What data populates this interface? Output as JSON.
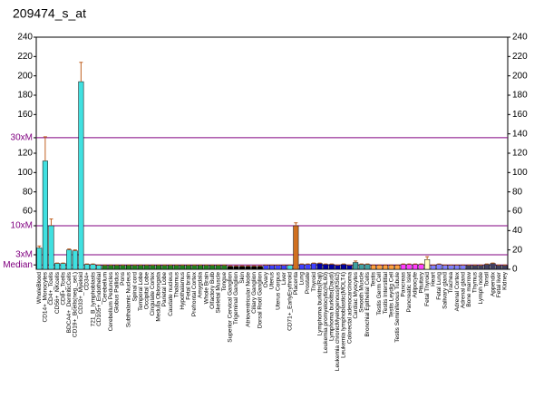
{
  "chart_data": {
    "type": "bar",
    "title": "209474_s_at",
    "categories": [
      "WholeBlood",
      "CD14+_Monocytes",
      "CD4+_Tcells",
      "CD56+_NKcells",
      "CD8+_Tcells",
      "BDCA4+_DentriticCells",
      "CD19+_Bcells(neg._sel.)",
      "CD33+_Myeloid",
      "CD34+",
      "721_B_lymphoblasts",
      "CD105+_Endothelial",
      "Cerebellum",
      "Cerebellum Peduncles",
      "Globus Pallidus",
      "Pons",
      "Subthalamic Nucleus",
      "Spinal cord",
      "Temporal Lobe",
      "Occipital Lobe",
      "Cingulate Cortex",
      "Medulla Oblongata",
      "Parietal Lobe",
      "Caudate nucleus",
      "Thalamus",
      "Hypothalamus",
      "Fetal brain",
      "Prefrontal Cortex",
      "Amygdala",
      "Whole Brain",
      "Olfactory Bulb",
      "Skeletal Muscle",
      "Tongue",
      "Superior Cervical Ganglion",
      "Trigeminal Ganglion",
      "Skin",
      "Atrioventricular Node",
      "Ciliary Ganglion",
      "Dorsal Root Ganglion",
      "Ovary",
      "Uterus",
      "Uterus Corpus",
      "Liver",
      "CD71+_EarlyErythroid",
      "Placenta",
      "Lung",
      "Prostate",
      "Thyroid",
      "Lymphoma burkitts(Raji)",
      "Leukemia promyelocytic(HL60)",
      "Lymphoma burkitts(Daudi)",
      "Leukemia chronicMyelogenous(K562)",
      "Leukemia lymphoblastic(MOLT4)",
      "Colorectal adenocarcinoma",
      "Cardiac Myocytes",
      "Smooth Muscle",
      "Bronchial Epithelial Cells",
      "Testis",
      "Testis Germ Cell",
      "Testis Interstitial",
      "Testis Leydig Cell",
      "Testis Seminiferous Tubule",
      "Pancreas",
      "Pancreatic Islet",
      "Adipocyte",
      "Pituitary",
      "Fetal Thyroid",
      "Heart",
      "Fetal Lung",
      "Salivary gland",
      "Trachea",
      "Adrenal Cortex",
      "Adrenal gland",
      "Bone marrow",
      "Thymus",
      "Lymph node",
      "Tonsil",
      "Appendix",
      "Fetal liver",
      "Kidney"
    ],
    "values": [
      22,
      112,
      45,
      6,
      6,
      20,
      19,
      194,
      5,
      5,
      4,
      4,
      4,
      4,
      4,
      4,
      4,
      4,
      4,
      4,
      4,
      4,
      4,
      4,
      4,
      4,
      4,
      4,
      4,
      4,
      4,
      4,
      3,
      3,
      3,
      3,
      3,
      3,
      4,
      4,
      4,
      4,
      4,
      45,
      5,
      5,
      6,
      6,
      5,
      5,
      4,
      5,
      4,
      7,
      5,
      5,
      4,
      4,
      4,
      4,
      4,
      5,
      5,
      5,
      5,
      10,
      4,
      5,
      4,
      4,
      4,
      4,
      4,
      4,
      4,
      5,
      6,
      4,
      4
    ],
    "errors": [
      2,
      25,
      7,
      0.5,
      0.5,
      1,
      1,
      20,
      0.5,
      0.5,
      0.5,
      0.5,
      0.5,
      0.5,
      0.5,
      0.5,
      0.5,
      0.5,
      0.5,
      0.5,
      0.5,
      0.5,
      0.5,
      0.5,
      0.5,
      0.5,
      0.5,
      0.5,
      0.5,
      0.5,
      0.5,
      0.5,
      0.5,
      0.5,
      0.5,
      0.5,
      0.5,
      0.5,
      0.5,
      0.5,
      0.5,
      0.5,
      0.5,
      3,
      0.5,
      0.5,
      0.5,
      0.5,
      0.5,
      0.5,
      0.5,
      0.5,
      0.5,
      1.5,
      0.5,
      0.5,
      0.5,
      0.5,
      0.5,
      0.5,
      0.5,
      0.5,
      0.5,
      0.5,
      0.5,
      3,
      0.5,
      0.5,
      0.5,
      0.5,
      0.5,
      0.5,
      0.5,
      0.5,
      0.5,
      0.5,
      0.5,
      0.5,
      0.5
    ],
    "colors": [
      "#40e0e0",
      "#40e0e0",
      "#40e0e0",
      "#40e0e0",
      "#40e0e0",
      "#40e0e0",
      "#40e0e0",
      "#40e0e0",
      "#40e0e0",
      "#40e0e0",
      "#40e0e0",
      "#208020",
      "#208020",
      "#208020",
      "#208020",
      "#208020",
      "#208020",
      "#208020",
      "#208020",
      "#208020",
      "#208020",
      "#208020",
      "#208020",
      "#208020",
      "#208020",
      "#208020",
      "#208020",
      "#208020",
      "#208020",
      "#208020",
      "#208020",
      "#208020",
      "#000000",
      "#000000",
      "#000000",
      "#000000",
      "#000000",
      "#000000",
      "#4040ff",
      "#4040ff",
      "#4040ff",
      "#4040ff",
      "#40e0e0",
      "#d07020",
      "#4040ff",
      "#4040ff",
      "#4040ff",
      "#0000a0",
      "#0000a0",
      "#0000a0",
      "#0000a0",
      "#0000a0",
      "#0000a0",
      "#40a0a0",
      "#40a0a0",
      "#40a0a0",
      "#ffa040",
      "#ffa040",
      "#ffa040",
      "#ffa040",
      "#ffa040",
      "#ff40ff",
      "#ff40ff",
      "#ff40ff",
      "#ff40ff",
      "#ffffc0",
      "#8080ff",
      "#8080ff",
      "#8080ff",
      "#8080ff",
      "#8080ff",
      "#8080ff",
      "#404060",
      "#404060",
      "#404060",
      "#404060",
      "#404060",
      "#404060",
      "#404060"
    ],
    "ylim": [
      0,
      240
    ],
    "yticks": [
      240,
      220,
      200,
      180,
      160,
      {
        "value": 136,
        "label": "30xM"
      },
      120,
      100,
      80,
      60,
      {
        "value": 45,
        "label": "10xM"
      },
      {
        "value": 15,
        "label": "3xM"
      },
      {
        "value": 4.5,
        "label": "Median"
      }
    ],
    "y2lim": [
      0,
      240
    ],
    "y2ticks": [
      0,
      20,
      40,
      60,
      80,
      100,
      120,
      140,
      160,
      180,
      200,
      220,
      240
    ]
  }
}
